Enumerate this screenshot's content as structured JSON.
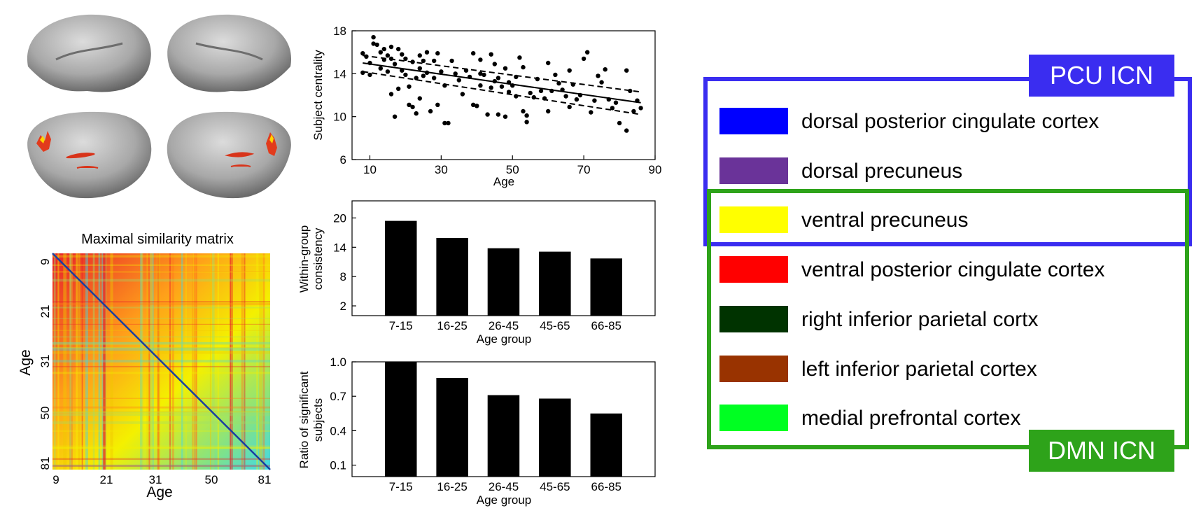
{
  "matrix": {
    "title": "Maximal similarity matrix",
    "xlabel": "Age",
    "ylabel": "Age",
    "ticks": [
      "9",
      "21",
      "31",
      "50",
      "81"
    ]
  },
  "chart_data": [
    {
      "type": "scatter",
      "xlabel": "Age",
      "ylabel": "Subject centrality",
      "xlim": [
        5,
        90
      ],
      "ylim": [
        6,
        18
      ],
      "xticks": [
        10,
        30,
        50,
        70,
        90
      ],
      "yticks": [
        6,
        10,
        14,
        18
      ],
      "fit_line": {
        "x": [
          8,
          86
        ],
        "y": [
          15.0,
          11.3
        ]
      },
      "ci_upper": {
        "x": [
          8,
          86
        ],
        "y": [
          15.7,
          12.3
        ]
      },
      "ci_lower": {
        "x": [
          8,
          86
        ],
        "y": [
          14.2,
          10.2
        ]
      },
      "points": [
        [
          8,
          15.9
        ],
        [
          8,
          14.1
        ],
        [
          9,
          15.6
        ],
        [
          10,
          15.0
        ],
        [
          10,
          13.9
        ],
        [
          11,
          16.8
        ],
        [
          11,
          17.4
        ],
        [
          12,
          16.7
        ],
        [
          13,
          16.0
        ],
        [
          13,
          14.5
        ],
        [
          14,
          16.3
        ],
        [
          14,
          15.3
        ],
        [
          15,
          15.7
        ],
        [
          15,
          14.2
        ],
        [
          16,
          15.4
        ],
        [
          16,
          12.1
        ],
        [
          16,
          16.5
        ],
        [
          17,
          14.9
        ],
        [
          17,
          10.0
        ],
        [
          18,
          16.3
        ],
        [
          18,
          12.6
        ],
        [
          19,
          15.8
        ],
        [
          19,
          14.3
        ],
        [
          20,
          13.9
        ],
        [
          20,
          15.4
        ],
        [
          21,
          12.8
        ],
        [
          21,
          11.1
        ],
        [
          22,
          15.1
        ],
        [
          22,
          10.9
        ],
        [
          23,
          13.6
        ],
        [
          23,
          10.3
        ],
        [
          24,
          15.7
        ],
        [
          24,
          14.5
        ],
        [
          24,
          11.7
        ],
        [
          25,
          15.2
        ],
        [
          25,
          13.8
        ],
        [
          26,
          16.0
        ],
        [
          26,
          14.1
        ],
        [
          27,
          10.5
        ],
        [
          28,
          15.2
        ],
        [
          28,
          13.6
        ],
        [
          29,
          15.9
        ],
        [
          29,
          11.1
        ],
        [
          30,
          14.2
        ],
        [
          31,
          12.9
        ],
        [
          31,
          9.4
        ],
        [
          32,
          9.4
        ],
        [
          33,
          15.2
        ],
        [
          34,
          14.0
        ],
        [
          35,
          13.4
        ],
        [
          36,
          12.1
        ],
        [
          37,
          14.3
        ],
        [
          38,
          13.7
        ],
        [
          39,
          15.9
        ],
        [
          39,
          11.1
        ],
        [
          40,
          11.0
        ],
        [
          41,
          15.3
        ],
        [
          41,
          14.0
        ],
        [
          41,
          12.9
        ],
        [
          42,
          13.9
        ],
        [
          43,
          10.2
        ],
        [
          44,
          15.8
        ],
        [
          44,
          12.7
        ],
        [
          45,
          14.9
        ],
        [
          45,
          13.3
        ],
        [
          46,
          13.6
        ],
        [
          46,
          10.2
        ],
        [
          47,
          12.8
        ],
        [
          48,
          14.5
        ],
        [
          48,
          10.0
        ],
        [
          49,
          13.2
        ],
        [
          49,
          12.3
        ],
        [
          50,
          12.9
        ],
        [
          51,
          11.9
        ],
        [
          51,
          13.7
        ],
        [
          52,
          15.5
        ],
        [
          53,
          14.6
        ],
        [
          53,
          10.5
        ],
        [
          54,
          9.5
        ],
        [
          54,
          10.1
        ],
        [
          55,
          12.2
        ],
        [
          56,
          11.8
        ],
        [
          57,
          13.5
        ],
        [
          58,
          12.4
        ],
        [
          59,
          11.7
        ],
        [
          60,
          15.0
        ],
        [
          60,
          10.5
        ],
        [
          61,
          12.4
        ],
        [
          62,
          13.9
        ],
        [
          63,
          13.1
        ],
        [
          64,
          12.5
        ],
        [
          65,
          11.9
        ],
        [
          66,
          14.3
        ],
        [
          66,
          10.9
        ],
        [
          67,
          13.0
        ],
        [
          68,
          11.6
        ],
        [
          69,
          12.0
        ],
        [
          70,
          15.4
        ],
        [
          71,
          16.0
        ],
        [
          72,
          10.4
        ],
        [
          73,
          11.5
        ],
        [
          74,
          13.8
        ],
        [
          75,
          13.2
        ],
        [
          76,
          14.4
        ],
        [
          77,
          11.6
        ],
        [
          78,
          10.8
        ],
        [
          79,
          11.3
        ],
        [
          80,
          9.4
        ],
        [
          82,
          8.7
        ],
        [
          82,
          14.3
        ],
        [
          83,
          12.4
        ],
        [
          84,
          10.5
        ],
        [
          85,
          11.5
        ],
        [
          86,
          10.8
        ]
      ]
    },
    {
      "type": "bar",
      "xlabel": "Age group",
      "ylabel": "Within-group consistency",
      "categories": [
        "7-15",
        "16-25",
        "26-45",
        "45-65",
        "66-85"
      ],
      "values": [
        19.4,
        15.9,
        13.8,
        13.1,
        11.7
      ],
      "ylim": [
        0,
        23.5
      ],
      "yticks": [
        2,
        8,
        14,
        20
      ]
    },
    {
      "type": "bar",
      "xlabel": "Age group",
      "ylabel": "Ratio of significant subjects",
      "categories": [
        "7-15",
        "16-25",
        "26-45",
        "45-65",
        "66-85"
      ],
      "values": [
        1.0,
        0.86,
        0.71,
        0.68,
        0.55
      ],
      "ylim": [
        0,
        1.0
      ],
      "yticks": [
        0.1,
        0.4,
        0.7,
        1.0
      ]
    }
  ],
  "legend": {
    "pcu_label": "PCU ICN",
    "dmn_label": "DMN ICN",
    "pcu_color": "#3a2df0",
    "dmn_color": "#2ea31a",
    "items": [
      {
        "label": "dorsal posterior cingulate cortex",
        "color": "#0000ff"
      },
      {
        "label": "dorsal precuneus",
        "color": "#6a3399"
      },
      {
        "label": "ventral precuneus",
        "color": "#ffff00"
      },
      {
        "label": "ventral posterior cingulate cortex",
        "color": "#ff0000"
      },
      {
        "label": "right inferior parietal cortx",
        "color": "#003300"
      },
      {
        "label": "left inferior parietal cortex",
        "color": "#993300"
      },
      {
        "label": "medial prefrontal cortex",
        "color": "#00ff22"
      }
    ]
  }
}
